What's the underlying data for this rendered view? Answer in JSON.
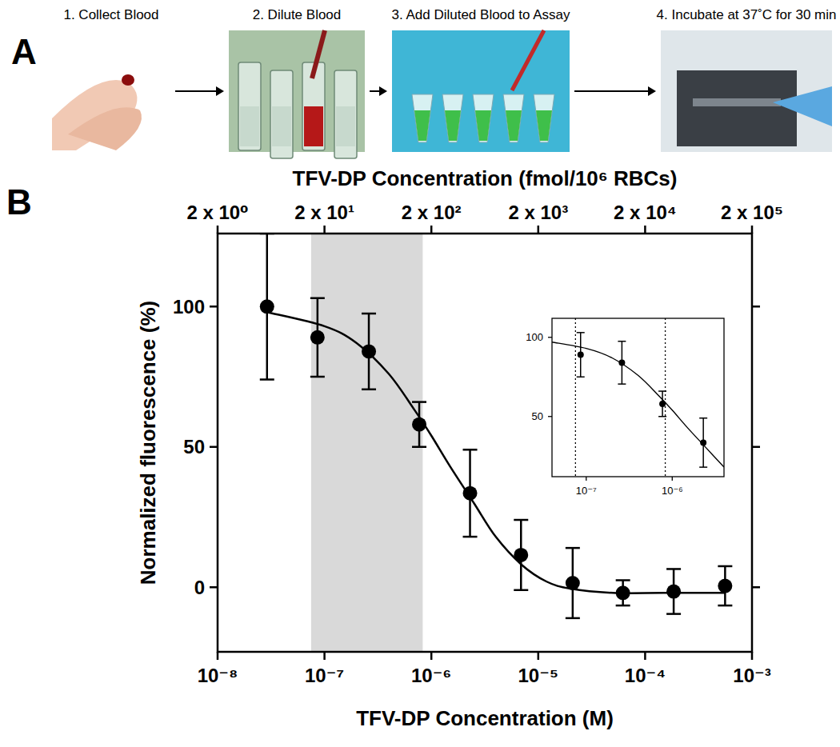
{
  "panel_a": {
    "label": "A",
    "steps": [
      "1. Collect Blood",
      "2. Dilute Blood",
      "3. Add Diluted Blood to Assay",
      "4. Incubate at 37˚C for 30 min"
    ]
  },
  "panel_b": {
    "label": "B"
  },
  "chart_data": [
    {
      "type": "scatter",
      "x_label": "TFV-DP Concentration (M)",
      "x2_label": "TFV-DP Concentration (fmol/10⁶ RBCs)",
      "y_label": "Normalized fluorescence (%)",
      "log": "x",
      "xlim": [
        1e-08,
        0.001
      ],
      "xticks": [
        {
          "value": 1e-08,
          "label": "10⁻⁸"
        },
        {
          "value": 1e-07,
          "label": "10⁻⁷"
        },
        {
          "value": 1e-06,
          "label": "10⁻⁶"
        },
        {
          "value": 1e-05,
          "label": "10⁻⁵"
        },
        {
          "value": 0.0001,
          "label": "10⁻⁴"
        },
        {
          "value": 0.001,
          "label": "10⁻³"
        }
      ],
      "x2lim": [
        2,
        200000
      ],
      "x2ticks": [
        {
          "value": 2,
          "label": "2 x 10⁰"
        },
        {
          "value": 20,
          "label": "2 x 10¹"
        },
        {
          "value": 200,
          "label": "2 x 10²"
        },
        {
          "value": 2000,
          "label": "2 x 10³"
        },
        {
          "value": 20000,
          "label": "2 x 10⁴"
        },
        {
          "value": 200000,
          "label": "2 x 10⁵"
        }
      ],
      "ylim": [
        -23,
        126
      ],
      "yticks": [
        0,
        50,
        100
      ],
      "shaded_region": {
        "xlim": [
          7.5e-08,
          8.3e-07
        ],
        "color": "#d9d9d9"
      },
      "series": [
        {
          "type": "scatter",
          "marker": "circle",
          "color": "#000000",
          "x": [
            2.9e-08,
            8.6e-08,
            2.6e-07,
            7.7e-07,
            2.3e-06,
            6.9e-06,
            2.1e-05,
            6.2e-05,
            0.000185,
            0.00056
          ],
          "values": [
            100,
            89,
            84,
            58,
            33.5,
            11.5,
            1.5,
            -2,
            -1.5,
            0.5
          ],
          "errors": [
            26,
            14,
            13.5,
            8,
            15.5,
            12.5,
            12.5,
            4.5,
            8,
            7
          ]
        },
        {
          "type": "line",
          "line_style": "solid",
          "color": "#000000",
          "x": [
            2.9e-08,
            1e-07,
            2e-07,
            4e-07,
            7e-07,
            1e-06,
            1.5e-06,
            2.5e-06,
            4e-06,
            7e-06,
            1.2e-05,
            2e-05,
            5e-05,
            0.00015,
            0.00056
          ],
          "values": [
            98,
            93,
            87,
            76,
            63,
            54,
            43,
            30,
            18,
            8,
            2,
            -0.5,
            -2,
            -2,
            -2
          ]
        }
      ]
    },
    {
      "type": "scatter",
      "log": "x",
      "xlim": [
        4e-08,
        4e-06
      ],
      "xticks": [
        {
          "value": 1e-07,
          "label": "10⁻⁷"
        },
        {
          "value": 1e-06,
          "label": "10⁻⁶"
        }
      ],
      "ylim": [
        12,
        112
      ],
      "yticks": [
        50,
        100
      ],
      "reference_lines": {
        "x": [
          7.5e-08,
          8.3e-07
        ],
        "line_style": "dotted"
      },
      "series": [
        {
          "type": "scatter",
          "marker": "circle",
          "color": "#000000",
          "x": [
            8.6e-08,
            2.6e-07,
            7.7e-07,
            2.3e-06
          ],
          "values": [
            89,
            84,
            58,
            33.5
          ],
          "errors": [
            14,
            13.5,
            8,
            15.5
          ]
        },
        {
          "type": "line",
          "line_style": "solid",
          "color": "#000000",
          "x": [
            4e-08,
            1e-07,
            2e-07,
            4e-07,
            7e-07,
            1e-06,
            1.5e-06,
            2.5e-06,
            4e-06
          ],
          "values": [
            97,
            93,
            87,
            76,
            63,
            54,
            43,
            30,
            18
          ]
        }
      ]
    }
  ]
}
